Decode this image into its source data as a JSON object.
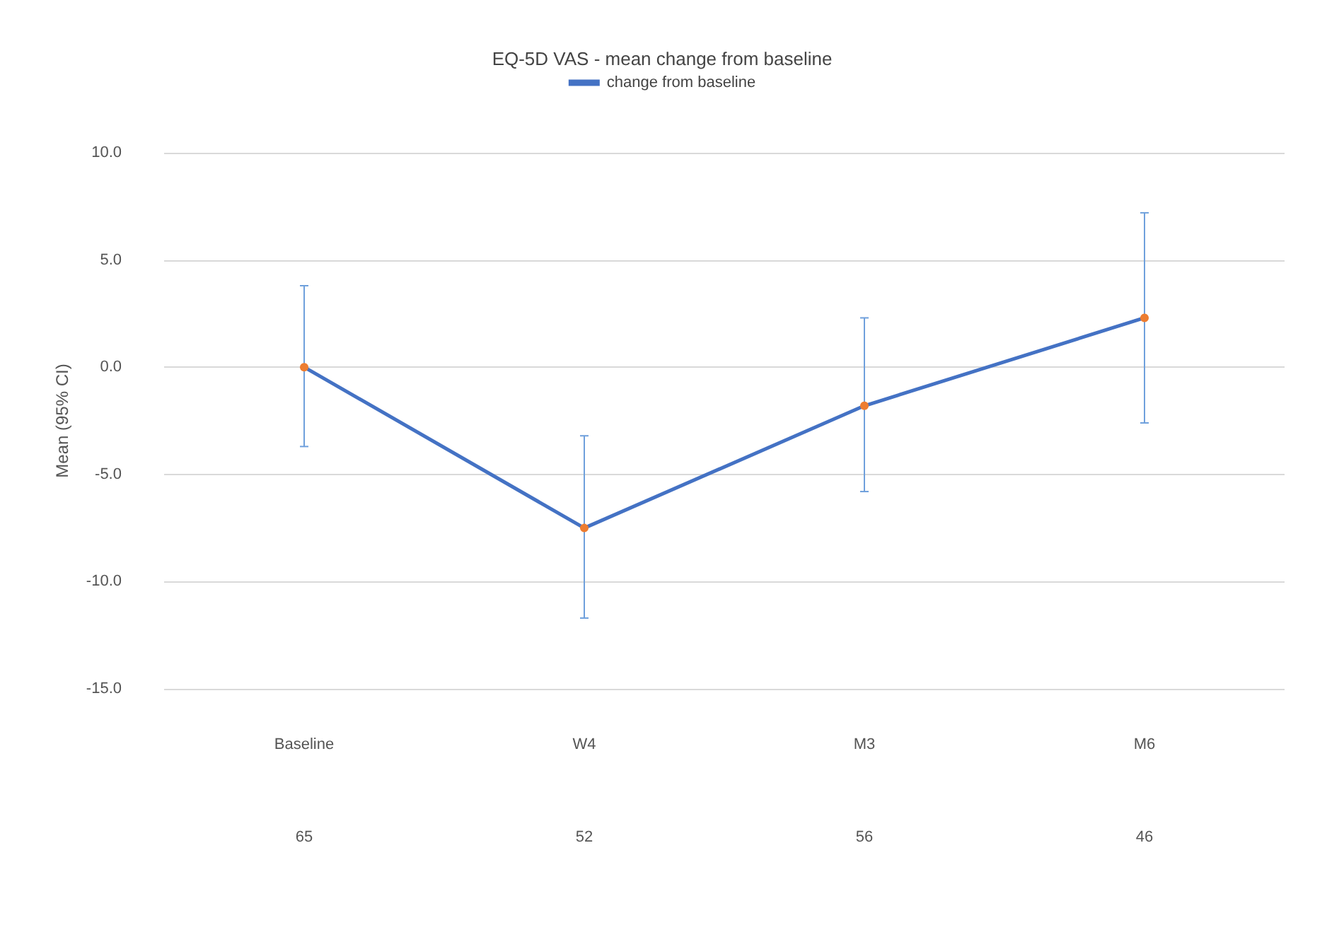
{
  "chart_data": {
    "type": "line",
    "title": "EQ-5D VAS - mean change from baseline",
    "ylabel": "Mean (95% CI)",
    "categories": [
      "Baseline",
      "W4",
      "M3",
      "M6"
    ],
    "series": [
      {
        "name": "change from baseline",
        "color": "#4472c4",
        "colors": [
          "#ed7d31",
          "#ed7d31",
          "#ed7d31",
          "#ed7d31"
        ],
        "values": [
          0,
          -7.5,
          -1.8,
          2.3
        ],
        "errors": [
          [
            -3.7,
            3.8
          ],
          [
            -11.7,
            -3.2
          ],
          [
            -5.8,
            2.3
          ],
          [
            -2.6,
            7.2
          ]
        ]
      }
    ],
    "annotations": [
      "65",
      "52",
      "56",
      "46"
    ],
    "ylim": [
      -15,
      10
    ],
    "yticks": [
      {
        "value": -15,
        "label": "-15.0"
      },
      {
        "value": -10,
        "label": "-10.0"
      },
      {
        "value": -5,
        "label": "-5.0"
      },
      {
        "value": 0,
        "label": "0.0"
      },
      {
        "value": 5,
        "label": "5.0"
      },
      {
        "value": 10,
        "label": "10.0"
      }
    ],
    "grid": "y",
    "legend": "top",
    "marker": "circle",
    "line_style": "solid"
  }
}
